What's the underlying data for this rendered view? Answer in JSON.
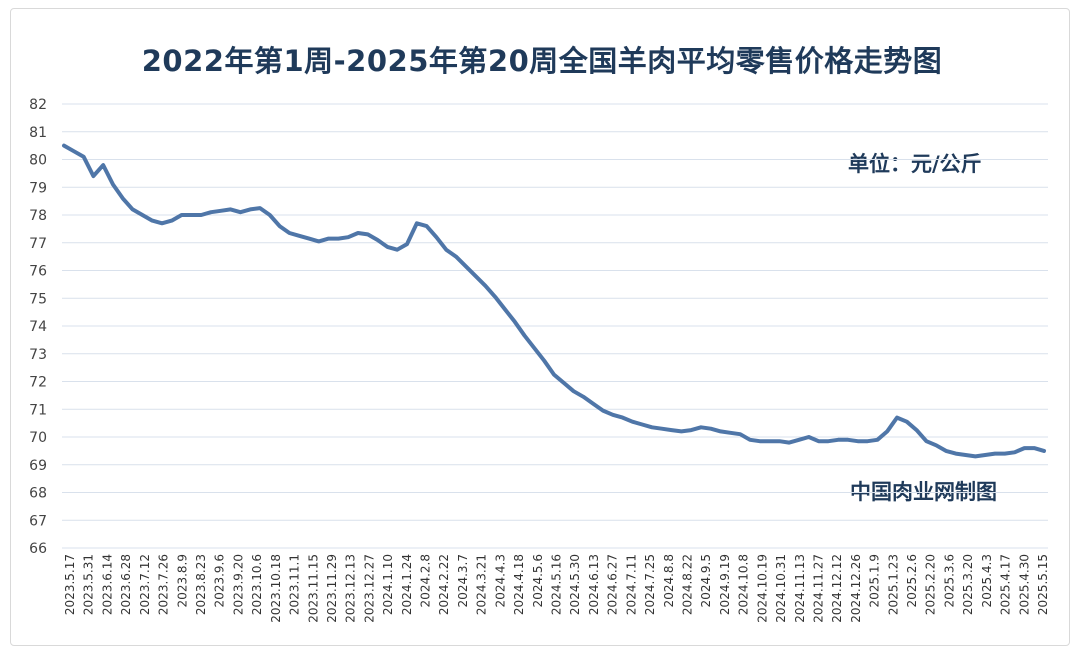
{
  "chart_data": {
    "type": "line",
    "title": "2022年第1周-2025年第20周全国羊肉平均零售价格走势图",
    "unit_label": "单位：元/公斤",
    "source_label": "中国肉业网制图",
    "ylim": [
      66,
      82
    ],
    "y_ticks": [
      "66",
      "67",
      "68",
      "69",
      "70",
      "71",
      "72",
      "73",
      "74",
      "75",
      "76",
      "77",
      "78",
      "79",
      "80",
      "81",
      "82"
    ],
    "grid": true,
    "x_tick_labels": [
      "2023.5.17",
      "2023.5.31",
      "2023.6.14",
      "2023.6.28",
      "2023.7.12",
      "2023.7.26",
      "2023.8.9",
      "2023.8.23",
      "2023.9.6",
      "2023.9.20",
      "2023.10.6",
      "2023.10.18",
      "2023.11.1",
      "2023.11.15",
      "2023.11.29",
      "2023.12.13",
      "2023.12.27",
      "2024.1.10",
      "2024.1.24",
      "2024.2.8",
      "2024.2.22",
      "2024.3.7",
      "2024.3.21",
      "2024.4.3",
      "2024.4.18",
      "2024.5.6",
      "2024.5.16",
      "2024.5.30",
      "2024.6.13",
      "2024.6.27",
      "2024.7.11",
      "2024.7.25",
      "2024.8.8",
      "2024.8.22",
      "2024.9.5",
      "2024.9.19",
      "2024.10.8",
      "2024.10.19",
      "2024.10.31",
      "2024.11.13",
      "2024.11.27",
      "2024.12.12",
      "2024.12.26",
      "2025.1.9",
      "2025.1.23",
      "2025.2.6",
      "2025.2.20",
      "2025.3.6",
      "2025.3.20",
      "2025.4.3",
      "2025.4.17",
      "2025.4.30",
      "2025.5.15"
    ],
    "series": [
      {
        "values": [
          80.5,
          80.3,
          80.1,
          79.4,
          79.8,
          79.1,
          78.6,
          78.2,
          78.0,
          77.8,
          77.7,
          77.8,
          78.0,
          78.0,
          78.0,
          78.1,
          78.15,
          78.2,
          78.1,
          78.2,
          78.25,
          78.0,
          77.6,
          77.35,
          77.25,
          77.15,
          77.05,
          77.15,
          77.15,
          77.2,
          77.35,
          77.3,
          77.1,
          76.85,
          76.75,
          76.95,
          77.7,
          77.6,
          77.2,
          76.75,
          76.5,
          76.15,
          75.8,
          75.45,
          75.05,
          74.6,
          74.15,
          73.65,
          73.2,
          72.75,
          72.25,
          71.95,
          71.65,
          71.45,
          71.2,
          70.95,
          70.8,
          70.7,
          70.55,
          70.45,
          70.35,
          70.3,
          70.25,
          70.2,
          70.25,
          70.35,
          70.3,
          70.2,
          70.15,
          70.1,
          69.9,
          69.85,
          69.85,
          69.85,
          69.8,
          69.9,
          70.0,
          69.85,
          69.85,
          69.9,
          69.9,
          69.85,
          69.85,
          69.9,
          70.2,
          70.7,
          70.55,
          70.25,
          69.85,
          69.7,
          69.5,
          69.4,
          69.35,
          69.3,
          69.35,
          69.4,
          69.4,
          69.45,
          69.6,
          69.6,
          69.5
        ]
      }
    ]
  },
  "colors": {
    "line": "#4f76a8",
    "grid": "#d9e1ec",
    "title": "#1f3a5a"
  }
}
